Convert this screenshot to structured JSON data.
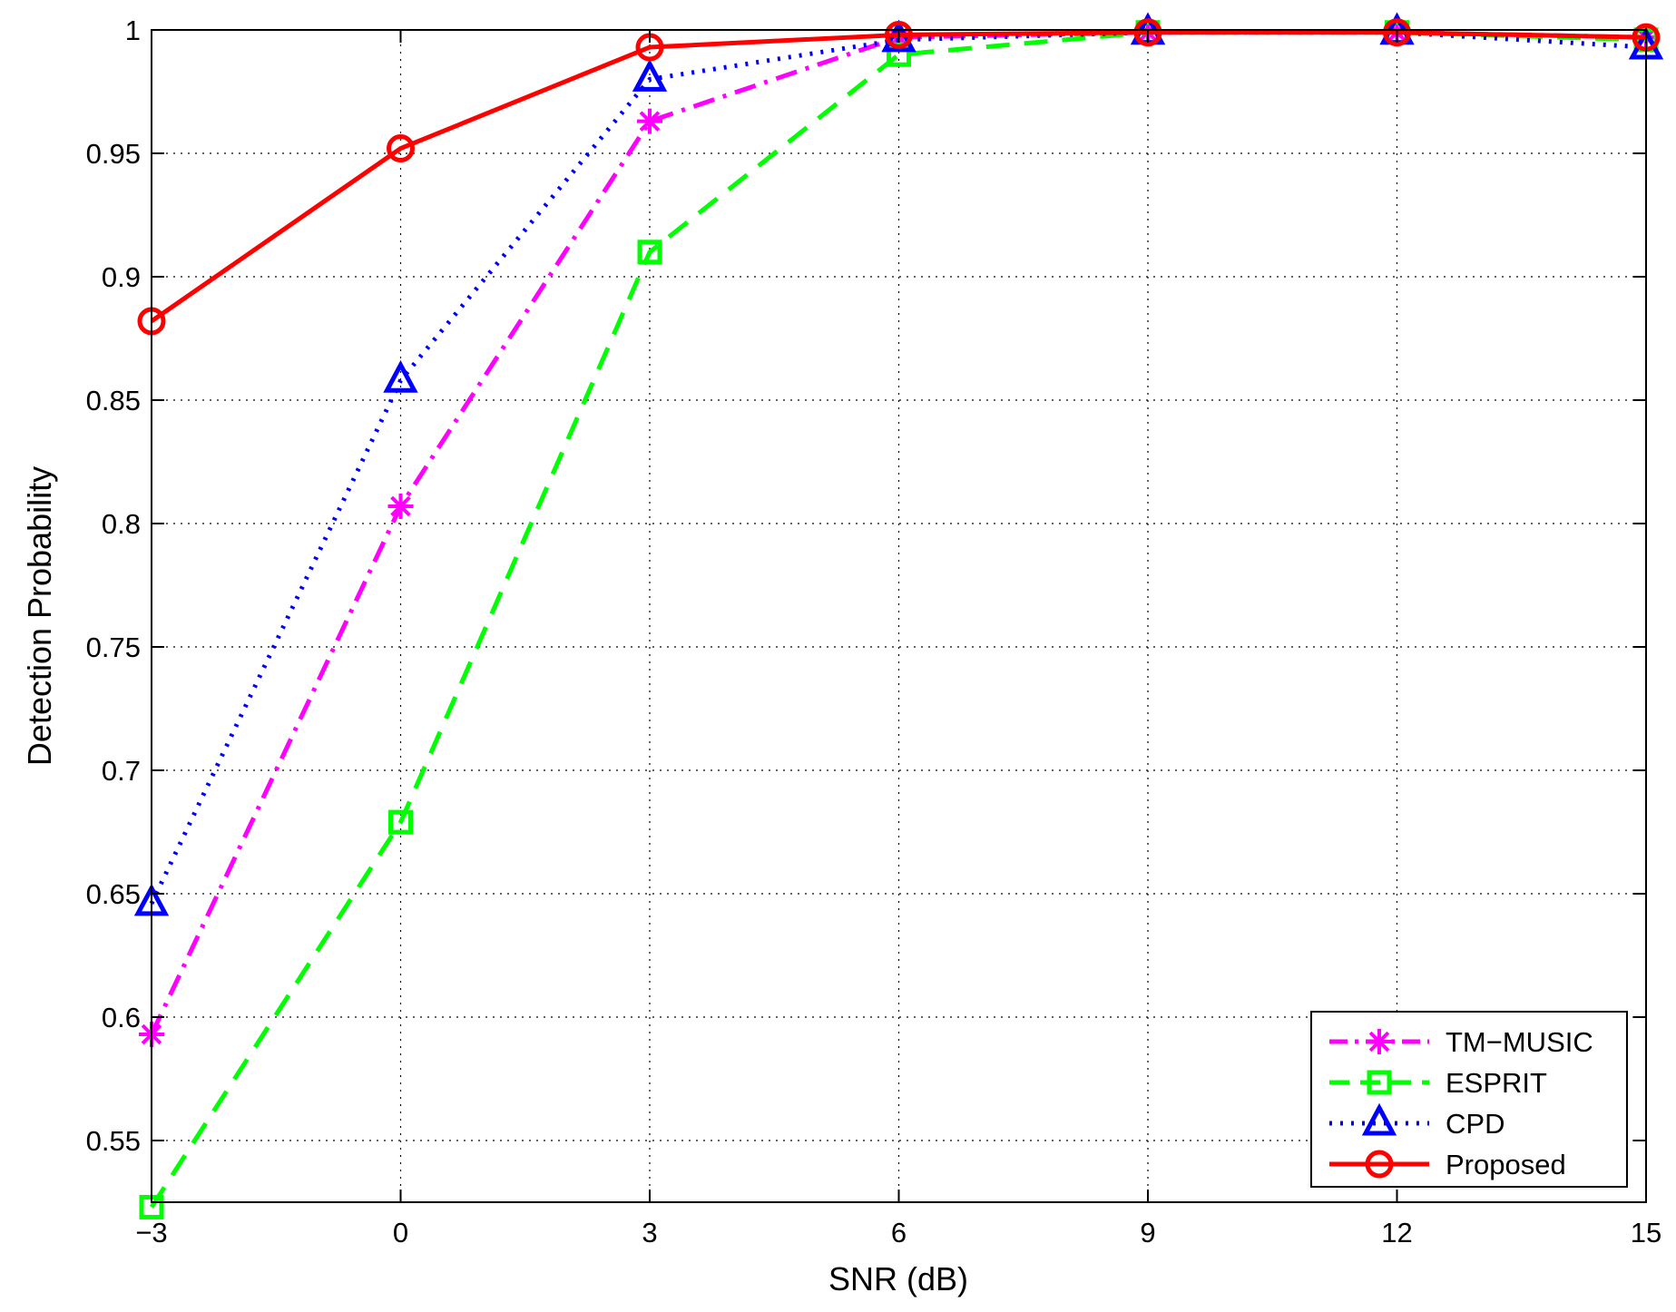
{
  "chart_data": {
    "type": "line",
    "title": "",
    "xlabel": "SNR (dB)",
    "ylabel": "Detection Probability",
    "x": [
      -3,
      0,
      3,
      6,
      9,
      12,
      15
    ],
    "xlim": [
      -3,
      15
    ],
    "ylim": [
      0.525,
      1
    ],
    "xticks": [
      -3,
      0,
      3,
      6,
      9,
      12,
      15
    ],
    "xtick_labels": [
      "−3",
      "0",
      "3",
      "6",
      "9",
      "12",
      "15"
    ],
    "yticks": [
      0.55,
      0.6,
      0.65,
      0.7,
      0.75,
      0.8,
      0.85,
      0.9,
      0.95,
      1
    ],
    "ytick_labels": [
      "0.55",
      "0.6",
      "0.65",
      "0.7",
      "0.75",
      "0.8",
      "0.85",
      "0.9",
      "0.95",
      "1"
    ],
    "grid": true,
    "legend_position": "bottom-right",
    "series": [
      {
        "name": "TM−MUSIC",
        "color": "#ff00ff",
        "style": "dash-dot",
        "marker": "asterisk",
        "values": [
          0.593,
          0.807,
          0.963,
          0.997,
          0.999,
          0.999,
          0.997
        ]
      },
      {
        "name": "ESPRIT",
        "color": "#00ff00",
        "style": "dashed",
        "marker": "square",
        "values": [
          0.523,
          0.679,
          0.91,
          0.99,
          0.999,
          0.999,
          0.996
        ]
      },
      {
        "name": "CPD",
        "color": "#0000ff",
        "style": "dotted",
        "marker": "triangle",
        "values": [
          0.646,
          0.858,
          0.98,
          0.996,
          0.999,
          0.999,
          0.993
        ]
      },
      {
        "name": "Proposed",
        "color": "#ff0000",
        "style": "solid",
        "marker": "circle",
        "values": [
          0.882,
          0.952,
          0.993,
          0.998,
          0.999,
          0.999,
          0.997
        ]
      }
    ]
  }
}
